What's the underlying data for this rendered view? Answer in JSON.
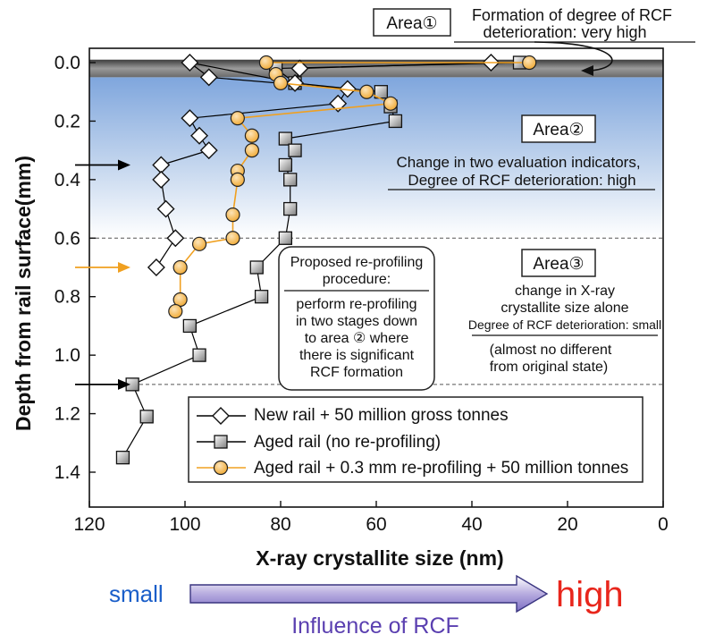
{
  "chart_data": {
    "type": "line",
    "xlabel": "X-ray crystallite size  (nm)",
    "ylabel": "Depth from rail surface(mm)",
    "xlim": [
      120,
      0
    ],
    "ylim": [
      0,
      1.45
    ],
    "x_reversed": true,
    "y_inverted": true,
    "x_ticks": [
      "120",
      "100",
      "80",
      "60",
      "40",
      "20",
      "0"
    ],
    "x_tick_values": [
      120,
      100,
      80,
      60,
      40,
      20,
      0
    ],
    "y_ticks": [
      "0.0",
      "0.2",
      "0.4",
      "0.6",
      "0.8",
      "1.0",
      "1.2",
      "1.4"
    ],
    "y_tick_values": [
      0,
      0.2,
      0.4,
      0.6,
      0.8,
      1.0,
      1.2,
      1.4
    ],
    "grid": false,
    "legend_position": "bottom-center",
    "series": [
      {
        "name": "New rail + 50 million gross tonnes",
        "marker": "diamond",
        "color": "#000000",
        "fill": "#ffffff",
        "points": [
          {
            "x": 36,
            "y": 0.0
          },
          {
            "x": 76,
            "y": 0.02
          },
          {
            "x": 77,
            "y": 0.07
          },
          {
            "x": 99,
            "y": 0.0
          },
          {
            "x": 95,
            "y": 0.05
          },
          {
            "x": 66,
            "y": 0.09
          },
          {
            "x": 68,
            "y": 0.14
          },
          {
            "x": 99,
            "y": 0.19
          },
          {
            "x": 97,
            "y": 0.25
          },
          {
            "x": 95,
            "y": 0.3
          },
          {
            "x": 105,
            "y": 0.35
          },
          {
            "x": 105,
            "y": 0.4
          },
          {
            "x": 104,
            "y": 0.5
          },
          {
            "x": 102,
            "y": 0.6
          },
          {
            "x": 106,
            "y": 0.7
          }
        ]
      },
      {
        "name": "Aged rail (no re-profiling)",
        "marker": "square",
        "color": "#000000",
        "fill": "#aaaaaa",
        "points": [
          {
            "x": 30,
            "y": 0.0
          },
          {
            "x": 81,
            "y": 0.02
          },
          {
            "x": 77,
            "y": 0.07
          },
          {
            "x": 59,
            "y": 0.1
          },
          {
            "x": 57,
            "y": 0.15
          },
          {
            "x": 56,
            "y": 0.2
          },
          {
            "x": 79,
            "y": 0.26
          },
          {
            "x": 77,
            "y": 0.3
          },
          {
            "x": 79,
            "y": 0.35
          },
          {
            "x": 78,
            "y": 0.4
          },
          {
            "x": 78,
            "y": 0.5
          },
          {
            "x": 79,
            "y": 0.6
          },
          {
            "x": 85,
            "y": 0.7
          },
          {
            "x": 84,
            "y": 0.8
          },
          {
            "x": 99,
            "y": 0.9
          },
          {
            "x": 97,
            "y": 1.0
          },
          {
            "x": 111,
            "y": 1.1
          },
          {
            "x": 108,
            "y": 1.21
          },
          {
            "x": 113,
            "y": 1.35
          }
        ]
      },
      {
        "name": "Aged rail + 0.3 mm re-profiling + 50 million tonnes",
        "marker": "circle",
        "color": "#f0a020",
        "fill": "#f7c27a",
        "points": [
          {
            "x": 28,
            "y": 0.0
          },
          {
            "x": 83,
            "y": 0.0
          },
          {
            "x": 81,
            "y": 0.04
          },
          {
            "x": 80,
            "y": 0.07
          },
          {
            "x": 62,
            "y": 0.1
          },
          {
            "x": 57,
            "y": 0.14
          },
          {
            "x": 89,
            "y": 0.19
          },
          {
            "x": 86,
            "y": 0.25
          },
          {
            "x": 86,
            "y": 0.3
          },
          {
            "x": 89,
            "y": 0.37
          },
          {
            "x": 89,
            "y": 0.4
          },
          {
            "x": 90,
            "y": 0.52
          },
          {
            "x": 90,
            "y": 0.6
          },
          {
            "x": 97,
            "y": 0.62
          },
          {
            "x": 101,
            "y": 0.7
          },
          {
            "x": 101,
            "y": 0.81
          },
          {
            "x": 102,
            "y": 0.85
          }
        ]
      }
    ],
    "zones": [
      {
        "name": "area1",
        "y_from": 0.0,
        "y_to": 0.05,
        "color": "#5a5a5a"
      },
      {
        "name": "area2",
        "y_from": 0.05,
        "y_to": 0.6,
        "color": "#8fb2e0"
      },
      {
        "name": "area3",
        "y_from": 0.6,
        "y_to": 1.1,
        "color": "#ffffff"
      }
    ],
    "boundaries": [
      0.6,
      1.1
    ],
    "arrows": [
      {
        "y": 0.35,
        "color": "#000000"
      },
      {
        "y": 0.7,
        "color": "#f0a020"
      },
      {
        "y": 1.1,
        "color": "#000000"
      }
    ],
    "annotations": {
      "area1": {
        "label": "Area①",
        "text1": "Formation of degree of RCF",
        "text2": "deterioration: very high"
      },
      "area2": {
        "label": "Area②",
        "text1": "Change in two evaluation indicators,",
        "text2": "Degree of RCF deterioration: high"
      },
      "area3": {
        "label": "Area③",
        "text1": "change in  X-ray",
        "text2": "crystallite size  alone",
        "text3": "Degree of RCF deterioration: small",
        "text4": "(almost no different",
        "text5": "from original state)"
      },
      "procedure": {
        "title1": "Proposed re-profiling",
        "title2": "procedure:",
        "body1": "perform re-profiling",
        "body2": "in two stages down",
        "body3": "to area ② where",
        "body4": "there is significant",
        "body5": "RCF formation"
      }
    },
    "influence": {
      "low": "small",
      "high": "high",
      "label": "Influence of RCF",
      "low_color": "#1a5ec9",
      "high_color": "#e8261c",
      "label_color": "#5a3fb0"
    }
  }
}
